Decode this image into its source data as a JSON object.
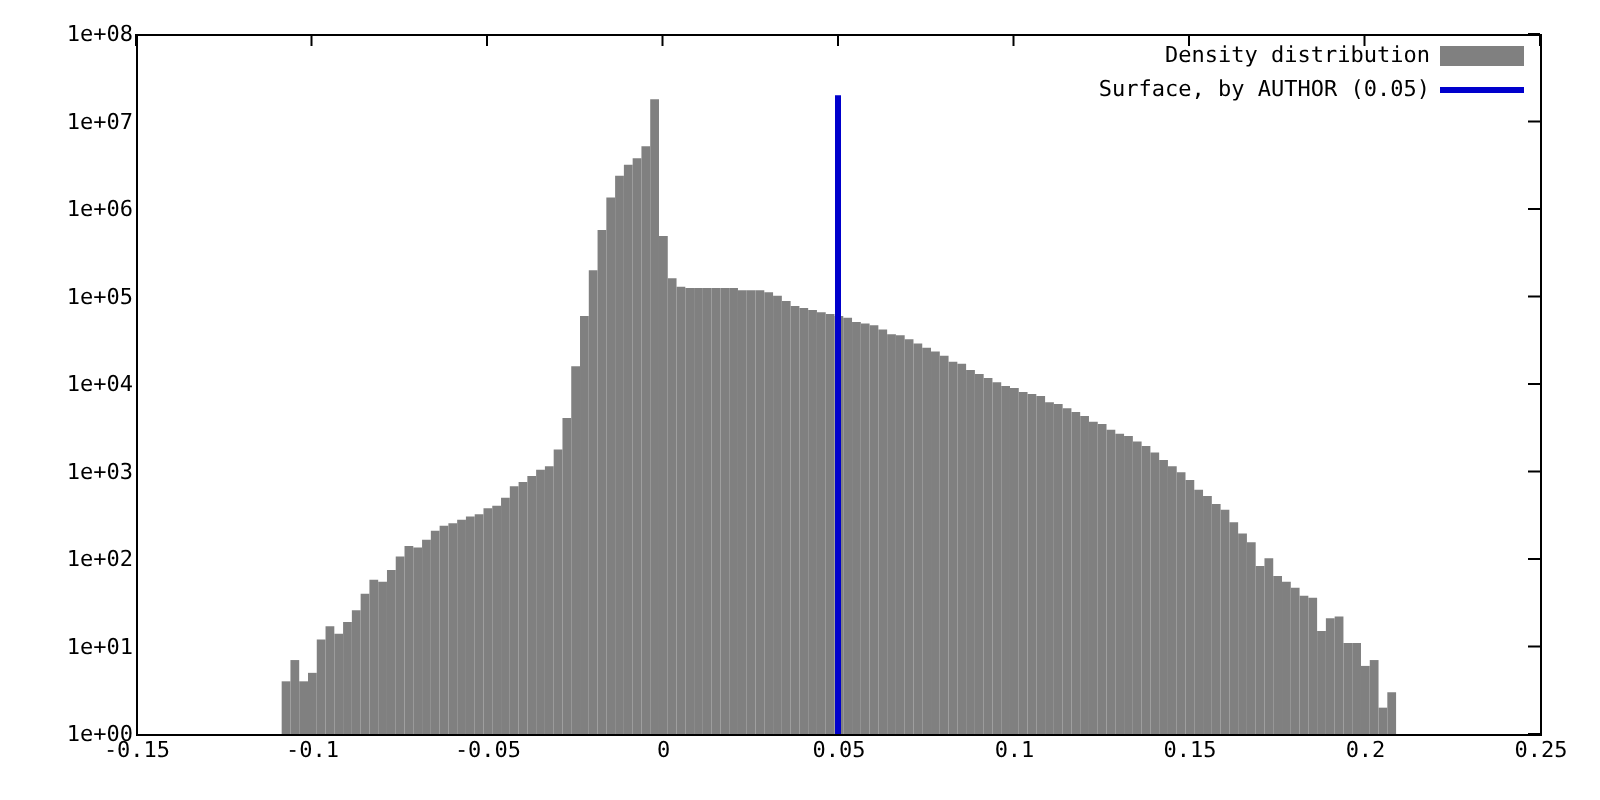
{
  "chart_data": {
    "type": "histogram",
    "log": "y",
    "legend": "top right",
    "grid": false,
    "xlim": [
      -0.15,
      0.25
    ],
    "xticks": [
      -0.15,
      -0.1,
      -0.05,
      0,
      0.05,
      0.1,
      0.15,
      0.2,
      0.25
    ],
    "ylim": [
      1,
      100000000
    ],
    "yticks": [
      {
        "value": 1,
        "label": "1e+00"
      },
      {
        "value": 10,
        "label": "1e+01"
      },
      {
        "value": 100,
        "label": "1e+02"
      },
      {
        "value": 1000,
        "label": "1e+03"
      },
      {
        "value": 10000,
        "label": "1e+04"
      },
      {
        "value": 100000,
        "label": "1e+05"
      },
      {
        "value": 1000000,
        "label": "1e+06"
      },
      {
        "value": 10000000,
        "label": "1e+07"
      },
      {
        "value": 100000000,
        "label": "1e+08"
      }
    ],
    "bins": [
      -0.1085,
      -0.106,
      -0.1035,
      -0.101,
      -0.0985,
      -0.096,
      -0.0935,
      -0.091,
      -0.0885,
      -0.086,
      -0.0835,
      -0.081,
      -0.0785,
      -0.076,
      -0.0735,
      -0.071,
      -0.0685,
      -0.066,
      -0.0635,
      -0.061,
      -0.0585,
      -0.056,
      -0.0535,
      -0.051,
      -0.0485,
      -0.046,
      -0.0435,
      -0.041,
      -0.0385,
      -0.036,
      -0.0335,
      -0.031,
      -0.0285,
      -0.026,
      -0.0235,
      -0.021,
      -0.0185,
      -0.016,
      -0.0135,
      -0.011,
      -0.0085,
      -0.006,
      -0.0035,
      -0.001,
      0.0015,
      0.004,
      0.0065,
      0.009,
      0.0115,
      0.014,
      0.0165,
      0.019,
      0.0215,
      0.024,
      0.0265,
      0.029,
      0.0315,
      0.034,
      0.0365,
      0.039,
      0.0415,
      0.044,
      0.0465,
      0.049,
      0.0515,
      0.054,
      0.0565,
      0.059,
      0.0615,
      0.064,
      0.0665,
      0.069,
      0.0715,
      0.074,
      0.0765,
      0.079,
      0.0815,
      0.084,
      0.0865,
      0.089,
      0.0915,
      0.094,
      0.0965,
      0.099,
      0.1015,
      0.104,
      0.1065,
      0.109,
      0.1115,
      0.114,
      0.1165,
      0.119,
      0.1215,
      0.124,
      0.1265,
      0.129,
      0.1315,
      0.134,
      0.1365,
      0.139,
      0.1415,
      0.144,
      0.1465,
      0.149,
      0.1515,
      0.154,
      0.1565,
      0.159,
      0.1615,
      0.164,
      0.1665,
      0.169,
      0.1715,
      0.174,
      0.1765,
      0.179,
      0.1815,
      0.184,
      0.1865,
      0.189,
      0.1915,
      0.194,
      0.1965,
      0.199,
      0.2015,
      0.204,
      0.2065,
      0.209
    ],
    "series": [
      {
        "name": "Density distribution",
        "color": "#808080",
        "values": [
          4,
          7,
          4,
          5,
          12,
          17,
          14,
          19,
          26,
          40,
          58,
          55,
          75,
          107,
          141,
          135,
          166,
          210,
          240,
          257,
          280,
          305,
          325,
          380,
          405,
          500,
          680,
          760,
          890,
          1050,
          1150,
          1780,
          4100,
          16000,
          60000,
          200000,
          575000,
          1350000,
          2400000,
          3200000,
          3800000,
          5200000,
          18000000,
          490000,
          162000,
          129000,
          125000,
          125000,
          125000,
          125000,
          125000,
          125000,
          118000,
          118000,
          118000,
          112000,
          102000,
          89000,
          78000,
          74000,
          70000,
          66000,
          63000,
          60000,
          57000,
          51000,
          49000,
          47000,
          42000,
          37000,
          36000,
          32500,
          29000,
          26000,
          23500,
          21000,
          18000,
          17000,
          14500,
          13000,
          11700,
          10500,
          9500,
          9000,
          8100,
          7700,
          7300,
          6200,
          5900,
          5300,
          4800,
          4300,
          3700,
          3500,
          3000,
          2700,
          2550,
          2200,
          1950,
          1650,
          1350,
          1150,
          980,
          800,
          620,
          525,
          425,
          365,
          263,
          195,
          155,
          83,
          102,
          64,
          55,
          47,
          38,
          36,
          15,
          21,
          22,
          11,
          11,
          6,
          7,
          2,
          3
        ]
      },
      {
        "name": "Surface, by AUTHOR (0.05)",
        "type": "line",
        "color": "#0000cc",
        "x": [
          0.05,
          0.05
        ],
        "values": [
          1,
          20000000
        ]
      }
    ]
  }
}
